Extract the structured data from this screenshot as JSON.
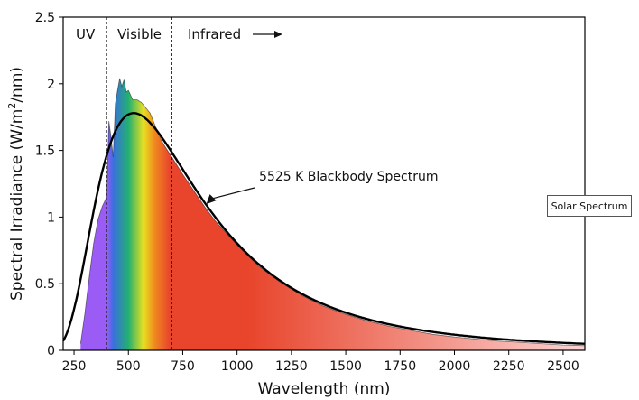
{
  "chart_data": {
    "type": "area",
    "title": "",
    "xlabel": "Wavelength (nm)",
    "ylabel_prefix": "Spectral Irradiance (W/m",
    "ylabel_sup": "2",
    "ylabel_suffix": "/nm)",
    "xlim": [
      200,
      2600
    ],
    "ylim": [
      0,
      2.5
    ],
    "x_ticks": [
      250,
      500,
      750,
      1000,
      1250,
      1500,
      1750,
      2000,
      2250,
      2500
    ],
    "x_tick_labels": [
      "250",
      "500",
      "750",
      "1000",
      "1250",
      "1500",
      "1750",
      "2000",
      "2250",
      "2500"
    ],
    "y_ticks": [
      0,
      0.5,
      1,
      1.5,
      2,
      2.5
    ],
    "y_tick_labels": [
      "0",
      "0.5",
      "1",
      "1.5",
      "2",
      "2.5"
    ],
    "grid": false,
    "regions": [
      {
        "label": "UV",
        "to": 400
      },
      {
        "label": "Visible",
        "from": 400,
        "to": 700
      },
      {
        "label": "Infrared",
        "from": 700
      }
    ],
    "boundaries": [
      400,
      700
    ],
    "series": [
      {
        "name": "Solar Spectrum",
        "style": "filled-area-rainbow",
        "x": [
          280,
          300,
          320,
          340,
          360,
          380,
          400,
          410,
          420,
          430,
          440,
          450,
          460,
          470,
          480,
          490,
          500,
          520,
          540,
          560,
          580,
          600,
          620,
          640,
          660,
          680,
          700,
          750,
          800,
          850,
          900,
          950,
          1000,
          1050,
          1100,
          1150,
          1200,
          1250,
          1300,
          1350,
          1400,
          1450,
          1500,
          1600,
          1700,
          1800,
          1900,
          2000,
          2100,
          2200,
          2300,
          2400,
          2500,
          2600
        ],
        "y": [
          0.05,
          0.28,
          0.55,
          0.8,
          0.98,
          1.08,
          1.15,
          1.72,
          1.6,
          1.45,
          1.85,
          1.95,
          2.04,
          1.98,
          2.03,
          1.94,
          1.95,
          1.88,
          1.88,
          1.86,
          1.82,
          1.78,
          1.7,
          1.62,
          1.55,
          1.5,
          1.45,
          1.32,
          1.2,
          1.08,
          0.97,
          0.88,
          0.79,
          0.71,
          0.63,
          0.57,
          0.51,
          0.46,
          0.41,
          0.37,
          0.33,
          0.3,
          0.27,
          0.22,
          0.18,
          0.15,
          0.12,
          0.1,
          0.085,
          0.07,
          0.06,
          0.05,
          0.04,
          0.035
        ]
      },
      {
        "name": "5525 K Blackbody Spectrum",
        "style": "line",
        "temperature_k": 5525,
        "x_from": 200,
        "x_to": 2600,
        "peak_value": 1.78
      }
    ],
    "annotations": [
      {
        "text": "5525 K Blackbody Spectrum",
        "points_to_x": 850
      }
    ]
  },
  "legend": {
    "solar_spectrum_label": "Solar Spectrum"
  },
  "colors": {
    "uv_purple": "#9b5cf5",
    "visible_blue": "#3a6fe0",
    "visible_green": "#22b070",
    "visible_yellow": "#e8e020",
    "visible_orange": "#f08a20",
    "infrared_red": "#e8452c",
    "infrared_fade": "#fbd3d3",
    "curve": "#000000"
  }
}
